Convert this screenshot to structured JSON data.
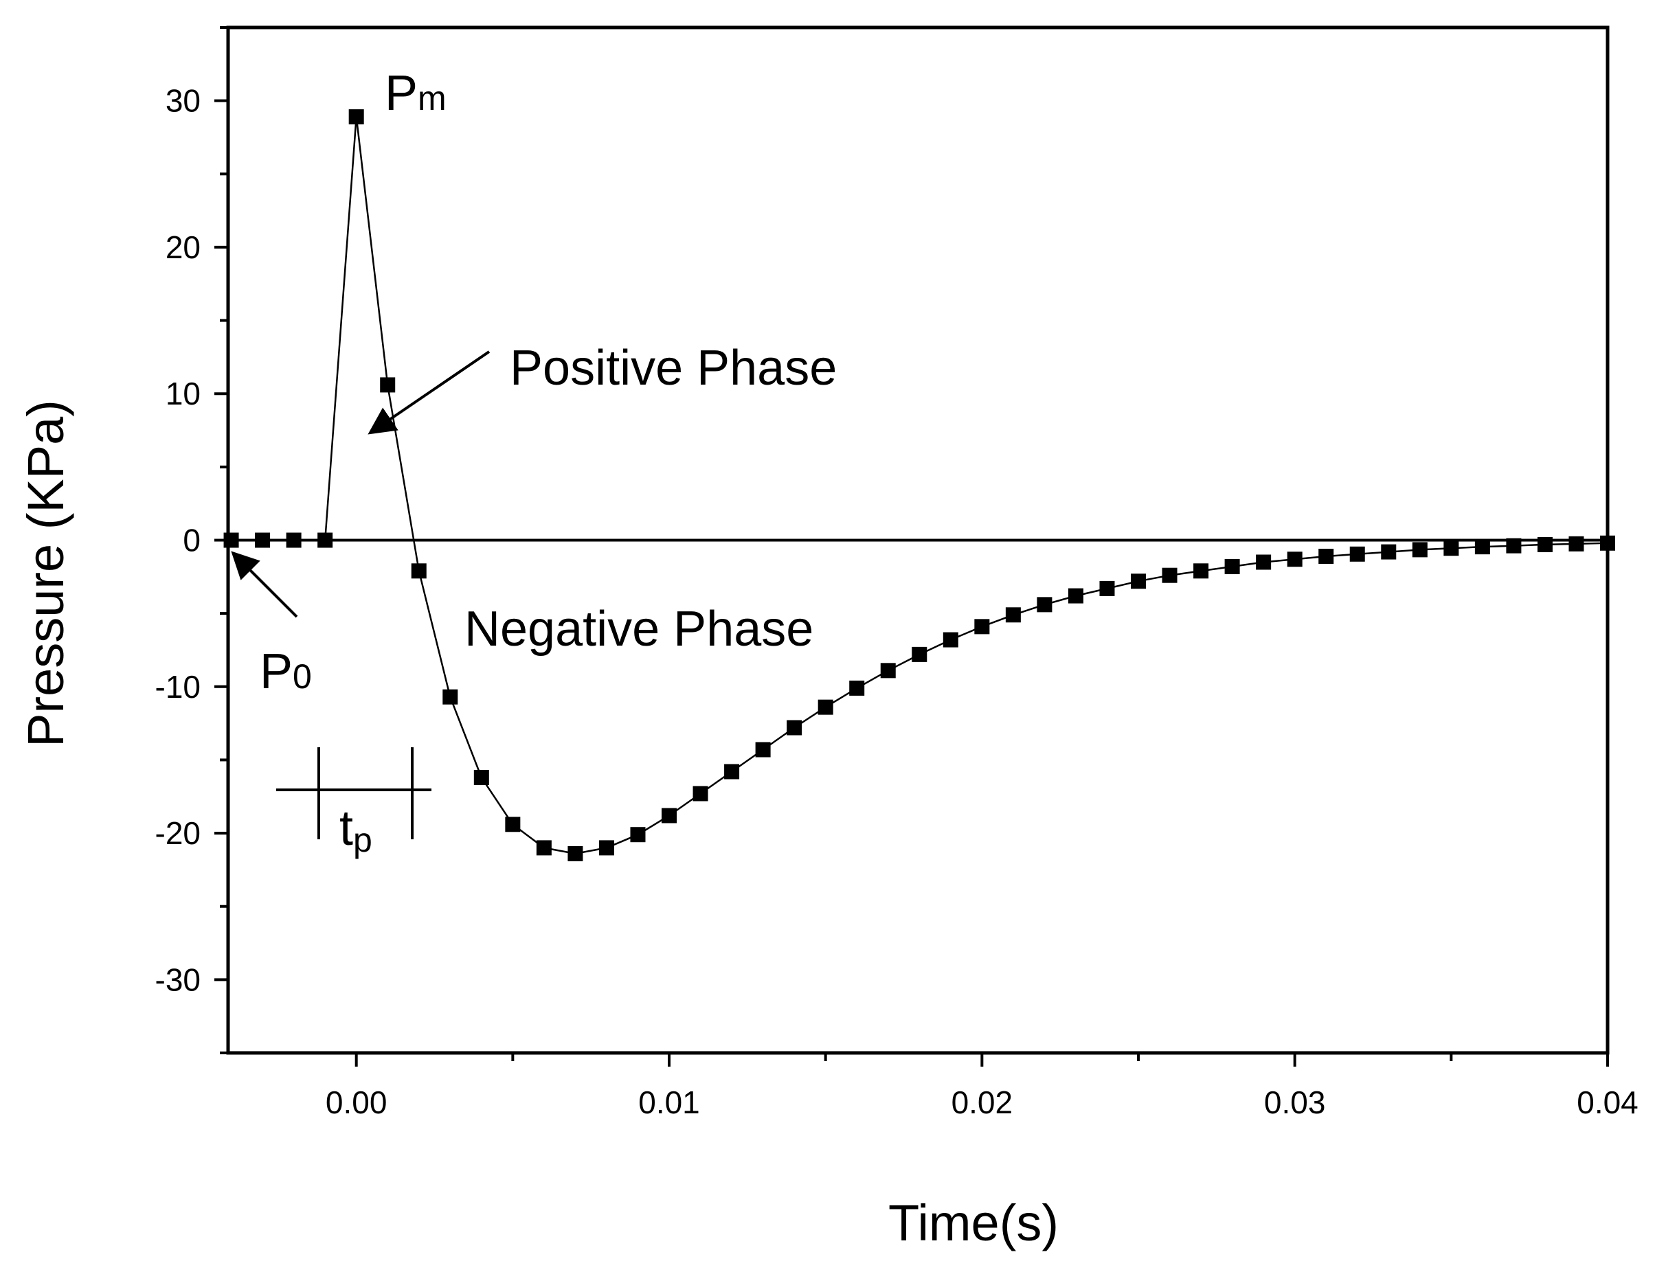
{
  "chart_data": {
    "type": "line",
    "title": "",
    "xlabel": "Time(s)",
    "ylabel": "Pressure (KPa)",
    "xlim": [
      -0.0041,
      0.04
    ],
    "ylim": [
      -35,
      35
    ],
    "xticks": [
      0.0,
      0.01,
      0.02,
      0.03,
      0.04
    ],
    "xtick_labels": [
      "0.00",
      "0.01",
      "0.02",
      "0.03",
      "0.04"
    ],
    "yticks": [
      -30,
      -20,
      -10,
      0,
      10,
      20,
      30
    ],
    "ytick_labels": [
      "-30",
      "-20",
      "-10",
      "0",
      "10",
      "20",
      "30"
    ],
    "reference_line_y": 0,
    "grid": false,
    "series": [
      {
        "name": "Pressure",
        "marker": "square",
        "color": "#000000",
        "x": [
          -0.004,
          -0.003,
          -0.002,
          -0.001,
          0.0,
          0.001,
          0.002,
          0.003,
          0.004,
          0.005,
          0.006,
          0.007,
          0.008,
          0.009,
          0.01,
          0.011,
          0.012,
          0.013,
          0.014,
          0.015,
          0.016,
          0.017,
          0.018,
          0.019,
          0.02,
          0.021,
          0.022,
          0.023,
          0.024,
          0.025,
          0.026,
          0.027,
          0.028,
          0.029,
          0.03,
          0.031,
          0.032,
          0.033,
          0.034,
          0.035,
          0.036,
          0.037,
          0.038,
          0.039,
          0.04
        ],
        "y": [
          0,
          0,
          0,
          0,
          28.9,
          10.6,
          -2.1,
          -10.7,
          -16.2,
          -19.4,
          -21.0,
          -21.4,
          -21.0,
          -20.1,
          -18.8,
          -17.3,
          -15.8,
          -14.3,
          -12.8,
          -11.4,
          -10.1,
          -8.9,
          -7.8,
          -6.8,
          -5.9,
          -5.1,
          -4.4,
          -3.8,
          -3.3,
          -2.8,
          -2.4,
          -2.1,
          -1.8,
          -1.5,
          -1.3,
          -1.1,
          -0.95,
          -0.8,
          -0.65,
          -0.55,
          -0.45,
          -0.38,
          -0.3,
          -0.25,
          -0.2
        ]
      }
    ],
    "annotations": {
      "pm": {
        "main": "P",
        "sub": "m"
      },
      "p0": {
        "main": "P",
        "sub": "0"
      },
      "tp": {
        "main": "t",
        "sub": "p"
      },
      "positive_phase": "Positive Phase",
      "negative_phase": "Negative Phase"
    }
  }
}
